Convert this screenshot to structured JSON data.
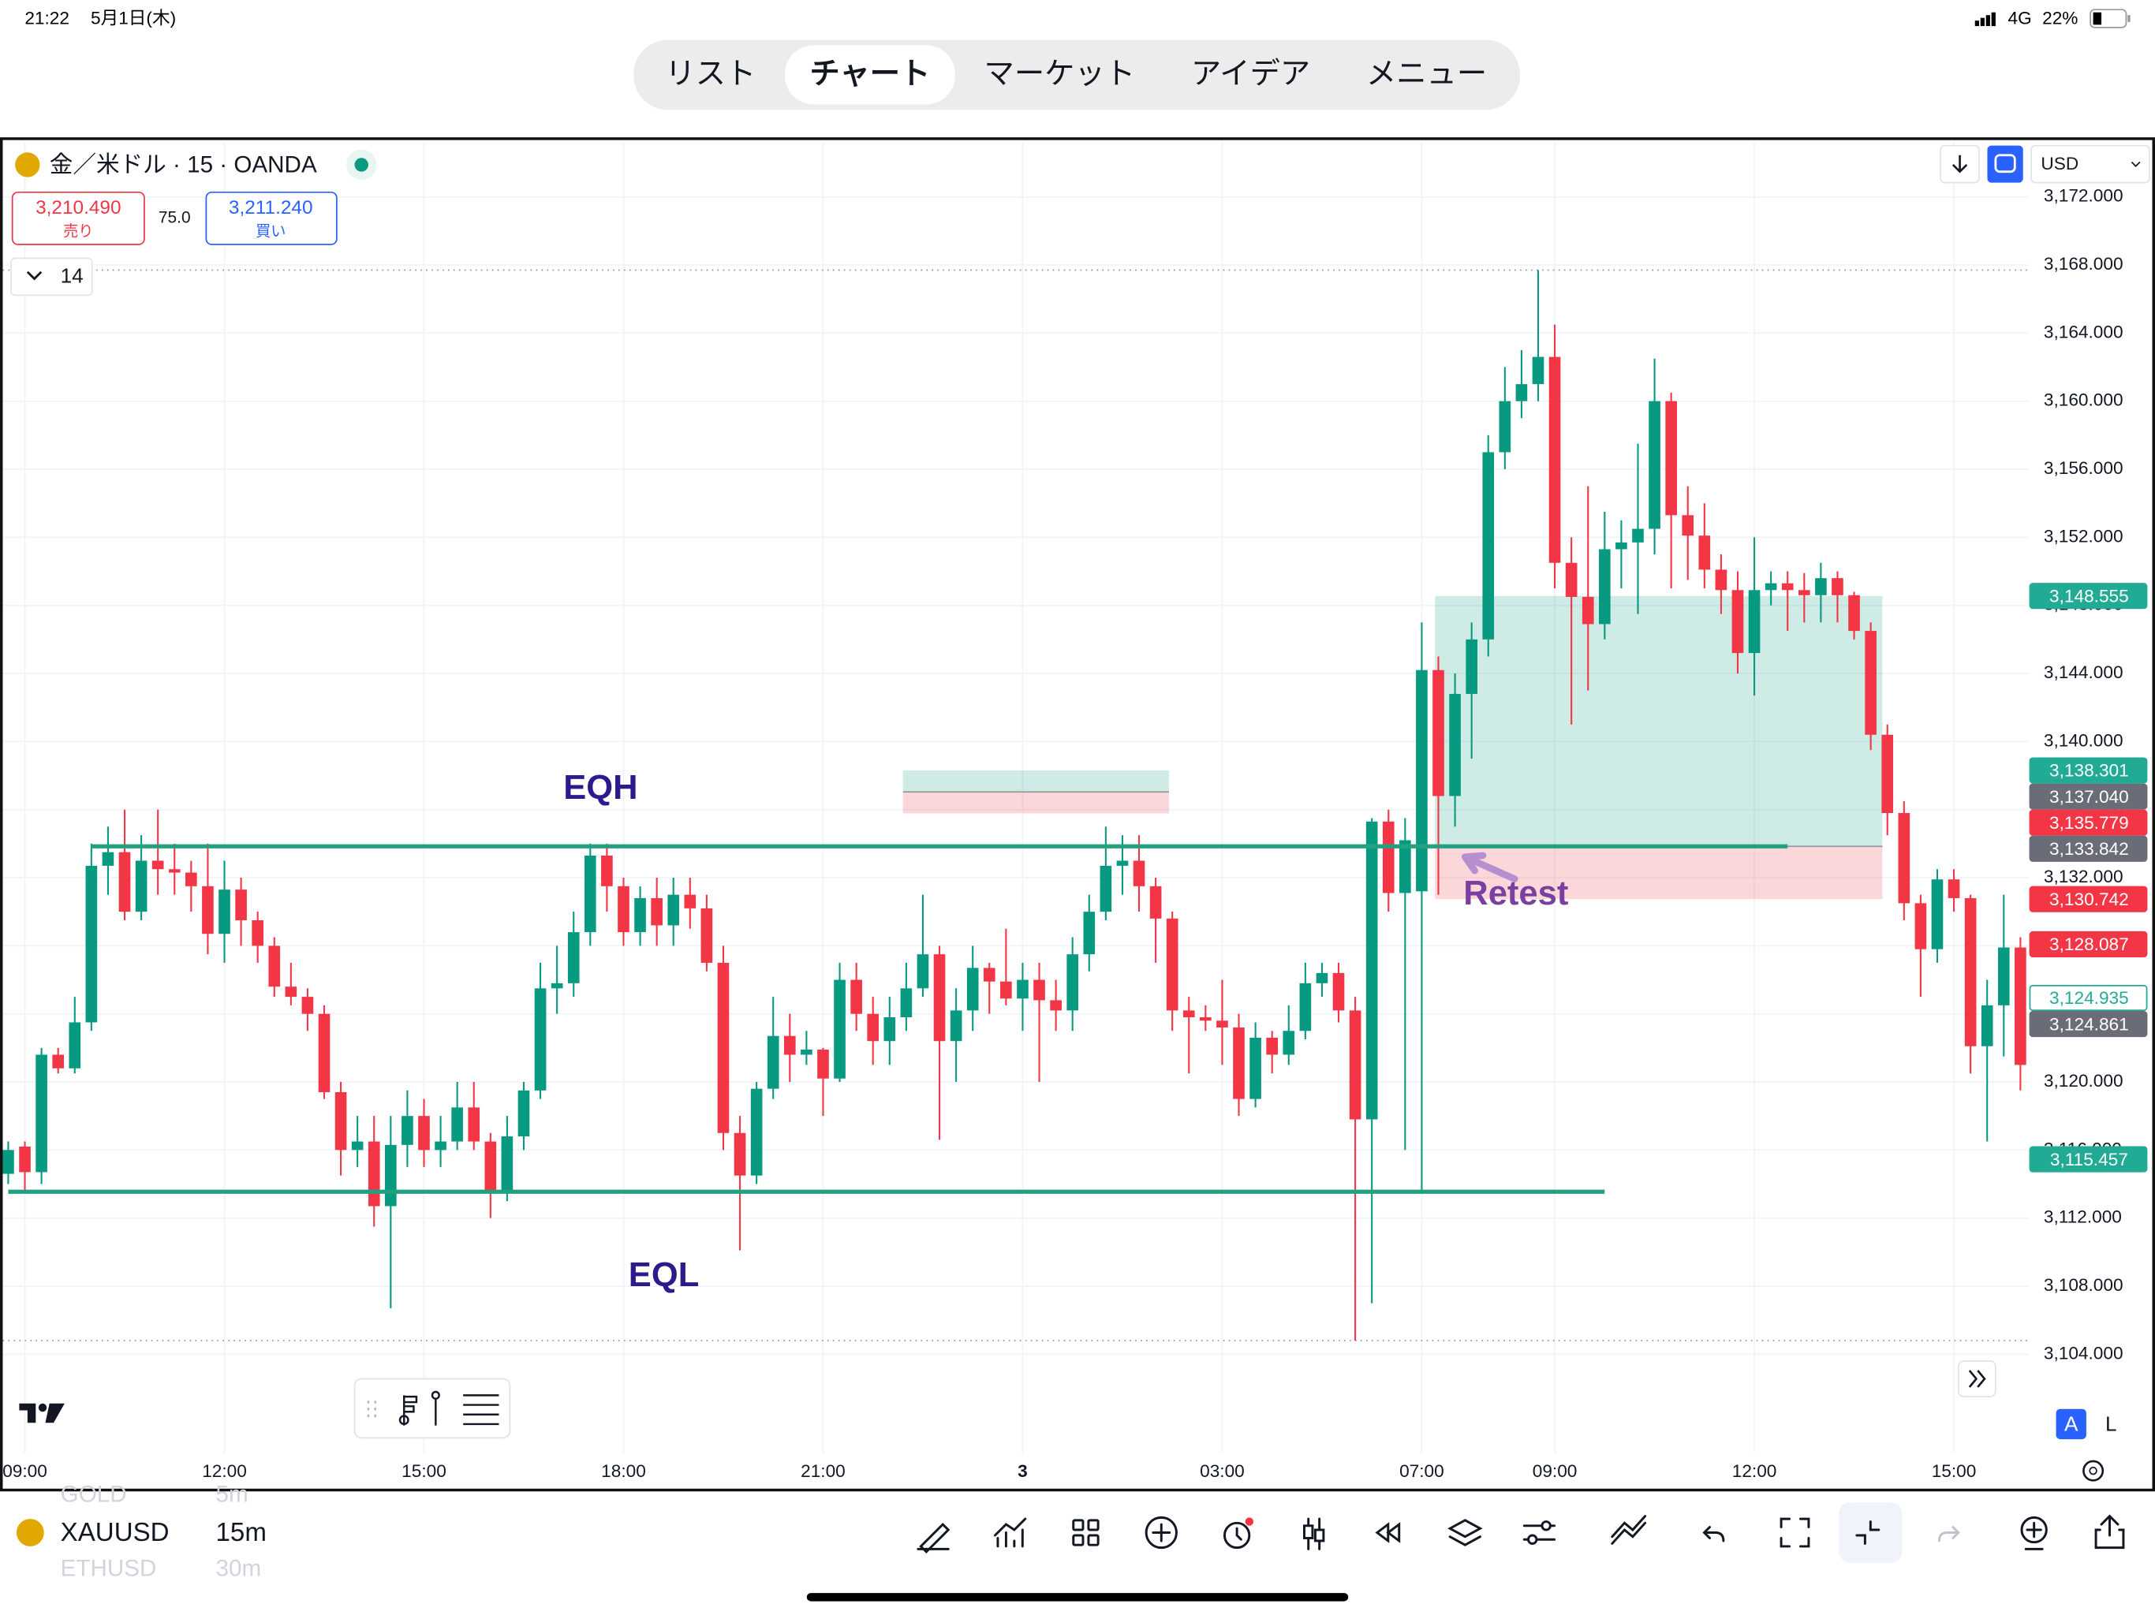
{
  "status_bar": {
    "time": "21:22",
    "date": "5月1日(木)",
    "network": "4G",
    "battery": "22%"
  },
  "tabs": [
    "リスト",
    "チャート",
    "マーケット",
    "アイデア",
    "メニュー"
  ],
  "active_tab": 1,
  "chart_header": {
    "symbol": "金／米ドル · 15 · OANDA",
    "sell_price": "3,210.490",
    "sell_label": "売り",
    "spread": "75.0",
    "buy_price": "3,211.240",
    "buy_label": "買い",
    "indicator_count": "14",
    "currency": "USD"
  },
  "chart_data": {
    "type": "candlestick",
    "up_color": "#089981",
    "down_color": "#f23645",
    "grid": true,
    "xlim": [
      -0.33,
      121.49
    ],
    "xticks": [
      {
        "value": 1,
        "label": "09:00"
      },
      {
        "value": 13,
        "label": "12:00"
      },
      {
        "value": 25,
        "label": "15:00"
      },
      {
        "value": 37,
        "label": "18:00"
      },
      {
        "value": 49,
        "label": "21:00"
      },
      {
        "value": 61,
        "label": "3"
      },
      {
        "value": 73,
        "label": "03:00"
      },
      {
        "value": 85,
        "label": "07:00"
      },
      {
        "value": 93,
        "label": "09:00"
      },
      {
        "value": 105,
        "label": "12:00"
      },
      {
        "value": 117,
        "label": "15:00"
      }
    ],
    "ylim": [
      3098.2,
      3175.26
    ],
    "yticks": [
      {
        "value": 3172,
        "label": "3,172.000"
      },
      {
        "value": 3168,
        "label": "3,168.000"
      },
      {
        "value": 3164,
        "label": "3,164.000"
      },
      {
        "value": 3160,
        "label": "3,160.000"
      },
      {
        "value": 3156,
        "label": "3,156.000"
      },
      {
        "value": 3152,
        "label": "3,152.000"
      },
      {
        "value": 3148,
        "label": "3,148.000"
      },
      {
        "value": 3144,
        "label": "3,144.000"
      },
      {
        "value": 3140,
        "label": "3,140.000"
      },
      {
        "value": 3136,
        "label": "3,136.000"
      },
      {
        "value": 3132,
        "label": "3,132.000"
      },
      {
        "value": 3128,
        "label": "3,128.000"
      },
      {
        "value": 3124,
        "label": "3,124.000"
      },
      {
        "value": 3120,
        "label": "3,120.000"
      },
      {
        "value": 3116,
        "label": "3,116.000"
      },
      {
        "value": 3112,
        "label": "3,112.000"
      },
      {
        "value": 3108,
        "label": "3,108.000"
      },
      {
        "value": 3104,
        "label": "3,104.000"
      }
    ],
    "open": [
      3114.6,
      3116.2,
      3114.7,
      3121.6,
      3120.8,
      3123.5,
      3132.7,
      3133.5,
      3130,
      3133,
      3132.5,
      3132.3,
      3131.5,
      3128.7,
      3131.3,
      3129.5,
      3128,
      3125.6,
      3125,
      3124,
      3119.4,
      3116,
      3116.5,
      3112.7,
      3116.3,
      3118,
      3116,
      3116.5,
      3118.5,
      3116.5,
      3113.5,
      3116.8,
      3119.5,
      3125.5,
      3125.8,
      3128.8,
      3133.3,
      3131.5,
      3128.8,
      3130.8,
      3129.2,
      3131,
      3130.2,
      3127,
      3117,
      3114.5,
      3119.6,
      3122.7,
      3121.6,
      3121.9,
      3120.2,
      3126,
      3124,
      3122.4,
      3123.8,
      3125.5,
      3127.5,
      3122.4,
      3124.2,
      3126.7,
      3125.9,
      3124.9,
      3126,
      3124.8,
      3124.2,
      3127.5,
      3130,
      3132.7,
      3133,
      3131.5,
      3129.6,
      3124.2,
      3123.8,
      3123.6,
      3123.2,
      3119,
      3122.6,
      3121.6,
      3123,
      3125.8,
      3126.4,
      3124.2,
      3117.8,
      3135.3,
      3131.1,
      3131.2,
      3144.2,
      3136.8,
      3142.8,
      3146,
      3157,
      3160,
      3161,
      3162.6,
      3150.5,
      3148.5,
      3146.9,
      3151.3,
      3151.7,
      3152.5,
      3160,
      3153.3,
      3152.1,
      3150.1,
      3148.9,
      3145.2,
      3148.9,
      3149.3,
      3148.9,
      3148.6,
      3149.6,
      3148.6,
      3146.5,
      3140.4,
      3135.8,
      3130.5,
      3127.8,
      3131.9,
      3130.8,
      3122.1,
      3124.5,
      3127.9
    ],
    "high": [
      3116.5,
      3116.5,
      3122,
      3122,
      3125,
      3134,
      3135,
      3136,
      3134.5,
      3136,
      3134,
      3133,
      3134,
      3133,
      3132,
      3130,
      3128.5,
      3127,
      3125.5,
      3124.5,
      3120,
      3118,
      3118,
      3118,
      3119.5,
      3119,
      3118,
      3120,
      3120,
      3117,
      3118,
      3120,
      3127,
      3128,
      3130,
      3134,
      3134,
      3132,
      3131.5,
      3132,
      3132,
      3132,
      3131,
      3128,
      3118,
      3120,
      3125,
      3124,
      3123,
      3122,
      3127,
      3127,
      3125,
      3125,
      3127,
      3131,
      3128,
      3125.5,
      3128,
      3127,
      3129,
      3127,
      3127,
      3126,
      3128.5,
      3131,
      3135,
      3134.5,
      3134.5,
      3132,
      3130,
      3125,
      3124.5,
      3126,
      3124,
      3123.5,
      3123,
      3124.5,
      3127,
      3127,
      3127,
      3125,
      3135.5,
      3136,
      3135.5,
      3147,
      3145,
      3144,
      3147,
      3158,
      3162,
      3163,
      3167.7,
      3164.5,
      3152,
      3155,
      3153.5,
      3153,
      3157.5,
      3162.5,
      3160.5,
      3155,
      3154,
      3151,
      3150,
      3152,
      3150,
      3150,
      3149.9,
      3150.5,
      3150,
      3148.8,
      3147,
      3141,
      3136.5,
      3131,
      3132.5,
      3132.5,
      3131,
      3126,
      3131,
      3128.5
    ],
    "low": [
      3114,
      3113.5,
      3114,
      3120.5,
      3120.5,
      3123,
      3131,
      3129.5,
      3129.5,
      3131,
      3131,
      3130,
      3127.5,
      3127,
      3128,
      3127,
      3125,
      3124.5,
      3123,
      3119,
      3114.5,
      3115,
      3111.5,
      3106.7,
      3115,
      3115,
      3115,
      3116,
      3116,
      3112,
      3113,
      3116,
      3119,
      3124,
      3125,
      3128,
      3130,
      3128,
      3128,
      3128,
      3128,
      3129,
      3126.5,
      3116,
      3110.1,
      3114,
      3119,
      3120,
      3121,
      3118,
      3120,
      3123,
      3121,
      3121,
      3123,
      3125,
      3116.6,
      3120,
      3123,
      3124,
      3124.5,
      3123,
      3120,
      3123,
      3123,
      3126.5,
      3129.5,
      3131,
      3130,
      3127,
      3123,
      3120.5,
      3123,
      3121,
      3118,
      3118.5,
      3120.5,
      3121,
      3122.5,
      3125,
      3123.5,
      3104.8,
      3107,
      3130,
      3116,
      3113.5,
      3131,
      3135,
      3139,
      3145,
      3156,
      3159,
      3160,
      3149,
      3141,
      3143,
      3146,
      3149,
      3147.5,
      3151,
      3149,
      3149.5,
      3149,
      3147.5,
      3144,
      3142.7,
      3148,
      3146.5,
      3147,
      3147,
      3147,
      3146,
      3139.5,
      3134.5,
      3129.5,
      3125,
      3127,
      3130,
      3120.5,
      3116.5,
      3121.5,
      3119.5
    ],
    "close": [
      3116,
      3114.7,
      3121.6,
      3120.8,
      3123.5,
      3132.7,
      3133.5,
      3130,
      3133,
      3132.5,
      3132.3,
      3131.5,
      3128.7,
      3131.3,
      3129.5,
      3128,
      3125.6,
      3125,
      3124,
      3119.4,
      3116,
      3116.5,
      3112.7,
      3116.3,
      3118,
      3116,
      3116.5,
      3118.5,
      3116.5,
      3113.5,
      3116.8,
      3119.5,
      3125.5,
      3125.8,
      3128.8,
      3133.3,
      3131.5,
      3128.8,
      3130.8,
      3129.2,
      3131,
      3130.2,
      3127,
      3117,
      3114.5,
      3119.6,
      3122.7,
      3121.6,
      3121.9,
      3120.2,
      3126,
      3124,
      3122.4,
      3123.8,
      3125.5,
      3127.5,
      3122.4,
      3124.2,
      3126.7,
      3125.9,
      3124.9,
      3126,
      3124.8,
      3124.2,
      3127.5,
      3130,
      3132.7,
      3133,
      3131.5,
      3129.6,
      3124.2,
      3123.8,
      3123.6,
      3123.2,
      3119,
      3122.6,
      3121.6,
      3123,
      3125.8,
      3126.4,
      3124.2,
      3117.8,
      3135.3,
      3131.1,
      3134.2,
      3144.2,
      3136.8,
      3142.8,
      3146,
      3157,
      3160,
      3161,
      3162.6,
      3150.5,
      3148.5,
      3146.9,
      3151.3,
      3151.7,
      3152.5,
      3160,
      3153.3,
      3152.1,
      3150.1,
      3148.9,
      3145.2,
      3148.9,
      3149.3,
      3148.9,
      3148.6,
      3149.6,
      3148.6,
      3146.5,
      3140.4,
      3135.8,
      3130.5,
      3127.8,
      3131.9,
      3130.8,
      3122.1,
      3124.5,
      3127.9,
      3121
    ],
    "price_labels": [
      {
        "value": 3148.555,
        "label": "3,148.555",
        "color": "#22ab94",
        "filled": true
      },
      {
        "value": 3138.301,
        "label": "3,138.301",
        "color": "#22ab94",
        "filled": true
      },
      {
        "value": 3137.04,
        "label": "3,137.040",
        "color": "#6a6d78",
        "filled": true
      },
      {
        "value": 3135.779,
        "label": "3,135.779",
        "color": "#f23645",
        "filled": true
      },
      {
        "value": 3133.842,
        "label": "3,133.842",
        "color": "#6a6d78",
        "filled": true
      },
      {
        "value": 3130.742,
        "label": "3,130.742",
        "color": "#f23645",
        "filled": true
      },
      {
        "value": 3128.087,
        "label": "3,128.087",
        "color": "#f23645",
        "filled": true
      },
      {
        "value": 3124.935,
        "label": "3,124.935",
        "color": "#22ab94",
        "filled": false
      },
      {
        "value": 3124.861,
        "label": "3,124.861",
        "color": "#6a6d78",
        "filled": true
      },
      {
        "value": 3115.457,
        "label": "3,115.457",
        "color": "#22ab94",
        "filled": true
      }
    ],
    "levels": [
      {
        "text": "EQH",
        "price": 3133.842,
        "x": [
          5,
          107
        ],
        "color": "#22a07f",
        "text_color": "#2d1b8e"
      },
      {
        "text": "EQL",
        "price": 3113.55,
        "x": [
          0,
          96
        ],
        "color": "#22a07f",
        "text_color": "#2d1b8e"
      }
    ],
    "positions": [
      {
        "target": 3138.301,
        "entry": 3137.04,
        "stop": 3135.779,
        "x": [
          53.8,
          69.8
        ]
      },
      {
        "target": 3148.555,
        "entry": 3133.842,
        "stop": 3130.742,
        "x": [
          85.8,
          112.7
        ]
      }
    ],
    "callout": {
      "text": "Retest",
      "color": "#7b3fa0"
    }
  },
  "scale_buttons": [
    "A",
    "L"
  ],
  "bottom_bar": {
    "symbol": "XAUUSD",
    "interval": "15m",
    "faded": [
      "GOLD",
      "5m",
      "ETHUSD",
      "30m"
    ]
  }
}
